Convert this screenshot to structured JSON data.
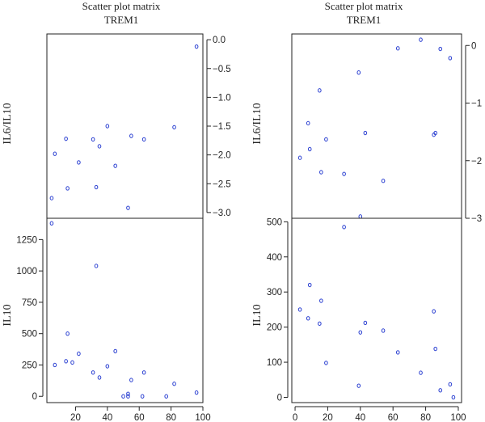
{
  "figure": {
    "colors": {
      "points": "#2a3fd1",
      "axis": "#222222",
      "background": "#ffffff"
    }
  },
  "chart_data": [
    {
      "type": "scatter",
      "title": "Scatter plot matrix",
      "subtitle": "TREM1",
      "xlabel": "",
      "ylabel": "IL6/IL10",
      "xlim": [
        2,
        100
      ],
      "ylim": [
        -3.1,
        0.1
      ],
      "x_axis": "hidden",
      "y_axis": "right",
      "y_ticks": [
        0.0,
        -0.5,
        -1.0,
        -1.5,
        -2.0,
        -2.5,
        -3.0
      ],
      "y_tick_labels": [
        "0.0",
        "−0.5",
        "−1.0",
        "−1.5",
        "−2.0",
        "−2.5",
        "−3.0"
      ],
      "x": [
        5,
        7,
        14,
        15,
        22,
        31,
        33,
        35,
        40,
        45,
        53,
        55,
        63,
        82,
        96
      ],
      "y": [
        -2.75,
        -1.98,
        -1.72,
        -2.58,
        -2.13,
        -1.73,
        -2.56,
        -1.85,
        -1.5,
        -2.19,
        -2.92,
        -1.67,
        -1.73,
        -1.52,
        -0.12
      ]
    },
    {
      "type": "scatter",
      "title": "",
      "xlabel": "",
      "ylabel": "IL10",
      "xlim": [
        2,
        100
      ],
      "ylim": [
        -50,
        1420
      ],
      "x_axis": "bottom",
      "y_axis": "left",
      "x_ticks": [
        20,
        40,
        60,
        80,
        100
      ],
      "x_tick_labels": [
        "20",
        "40",
        "60",
        "80",
        "100"
      ],
      "y_ticks": [
        0,
        250,
        500,
        750,
        1000,
        1250
      ],
      "y_tick_labels": [
        "0",
        "250",
        "500",
        "750",
        "1000",
        "1250"
      ],
      "x": [
        5,
        7,
        14,
        15,
        18,
        22,
        31,
        33,
        35,
        40,
        45,
        50,
        53,
        53,
        55,
        62,
        63,
        77,
        82,
        96
      ],
      "y": [
        1380,
        250,
        280,
        500,
        270,
        340,
        190,
        1040,
        150,
        240,
        360,
        0,
        20,
        0,
        130,
        0,
        190,
        0,
        100,
        30
      ]
    },
    {
      "type": "scatter",
      "title": "Scatter plot matrix",
      "subtitle": "TREM1",
      "xlabel": "",
      "ylabel": "IL6/IL10",
      "xlim": [
        -2,
        102
      ],
      "ylim": [
        -3.0,
        0.2
      ],
      "x_axis": "hidden",
      "y_axis": "right",
      "y_ticks": [
        0,
        -1,
        -2,
        -3
      ],
      "y_tick_labels": [
        "0",
        "−1",
        "−2",
        "−3"
      ],
      "x": [
        3,
        8,
        9,
        15,
        16,
        19,
        30,
        39,
        40,
        43,
        54,
        63,
        77,
        85,
        86,
        89,
        95
      ],
      "y": [
        -1.95,
        -1.35,
        -1.8,
        -0.78,
        -2.2,
        -1.63,
        -2.23,
        -0.47,
        -2.97,
        -1.52,
        -2.35,
        -0.05,
        0.1,
        -1.55,
        -1.52,
        -0.06,
        -0.22
      ]
    },
    {
      "type": "scatter",
      "title": "",
      "xlabel": "",
      "ylabel": "IL10",
      "xlim": [
        -2,
        102
      ],
      "ylim": [
        -15,
        510
      ],
      "x_axis": "bottom",
      "y_axis": "left",
      "x_ticks": [
        0,
        20,
        40,
        60,
        80,
        100
      ],
      "x_tick_labels": [
        "0",
        "20",
        "40",
        "60",
        "80",
        "100"
      ],
      "y_ticks": [
        0,
        100,
        200,
        300,
        400,
        500
      ],
      "y_tick_labels": [
        "0",
        "100",
        "200",
        "300",
        "400",
        "500"
      ],
      "x": [
        3,
        8,
        9,
        15,
        16,
        19,
        30,
        39,
        40,
        43,
        54,
        63,
        77,
        85,
        86,
        89,
        95,
        97
      ],
      "y": [
        250,
        225,
        320,
        210,
        275,
        98,
        485,
        33,
        185,
        212,
        190,
        128,
        70,
        245,
        138,
        20,
        37,
        0
      ]
    }
  ]
}
